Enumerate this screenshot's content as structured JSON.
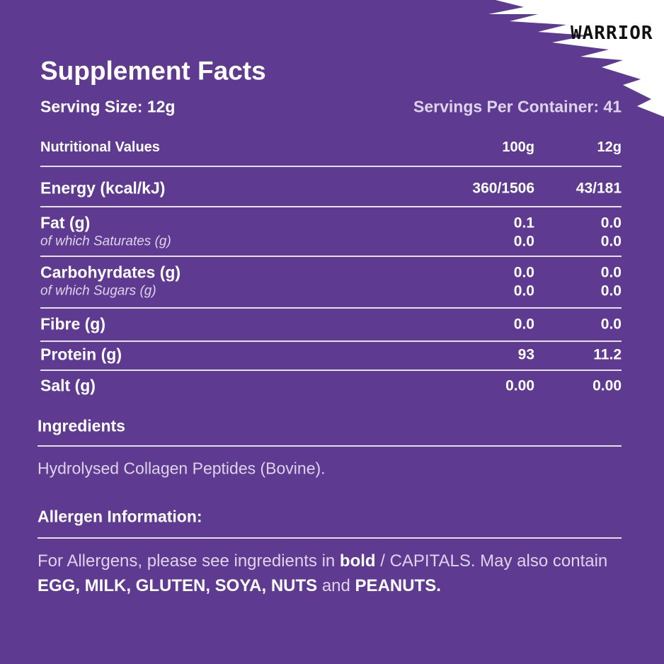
{
  "logo": "WARRIOR",
  "header": {
    "title": "Supplement Facts",
    "serving_size": "Serving Size: 12g",
    "servings_per_container": "Servings Per Container: 41"
  },
  "table": {
    "columns": [
      "Nutritional Values",
      "100g",
      "12g"
    ],
    "groups": [
      [
        {
          "label": "Energy (kcal/kJ)",
          "per_100g": "360/1506",
          "per_12g": "43/181"
        }
      ],
      [
        {
          "label": "Fat (g)",
          "per_100g": "0.1",
          "per_12g": "0.0"
        },
        {
          "label": "of which Saturates (g)",
          "per_100g": "0.0",
          "per_12g": "0.0",
          "style": "sub"
        }
      ],
      [
        {
          "label": "Carbohyrdates (g)",
          "per_100g": "0.0",
          "per_12g": "0.0"
        },
        {
          "label": "of which Sugars (g)",
          "per_100g": "0.0",
          "per_12g": "0.0",
          "style": "sub"
        }
      ],
      [
        {
          "label": "Fibre (g)",
          "per_100g": "0.0",
          "per_12g": "0.0"
        }
      ],
      [
        {
          "label": "Protein (g)",
          "per_100g": "93",
          "per_12g": "11.2"
        }
      ],
      [
        {
          "label": "Salt (g)",
          "per_100g": "0.00",
          "per_12g": "0.00"
        }
      ]
    ]
  },
  "ingredients": {
    "heading": "Ingredients",
    "text": "Hydrolysed Collagen Peptides (Bovine)."
  },
  "allergens": {
    "heading": "Allergen Information:",
    "segments": [
      {
        "text": "For Allergens, please see ingredients in ",
        "bold": false
      },
      {
        "text": "bold",
        "bold": true
      },
      {
        "text": " / CAPITALS. May also contain ",
        "bold": false
      },
      {
        "text": "EGG, MILK, GLUTEN, SOYA, NUTS",
        "bold": true
      },
      {
        "text": " and ",
        "bold": false
      },
      {
        "text": "PEANUTS.",
        "bold": true
      }
    ]
  }
}
